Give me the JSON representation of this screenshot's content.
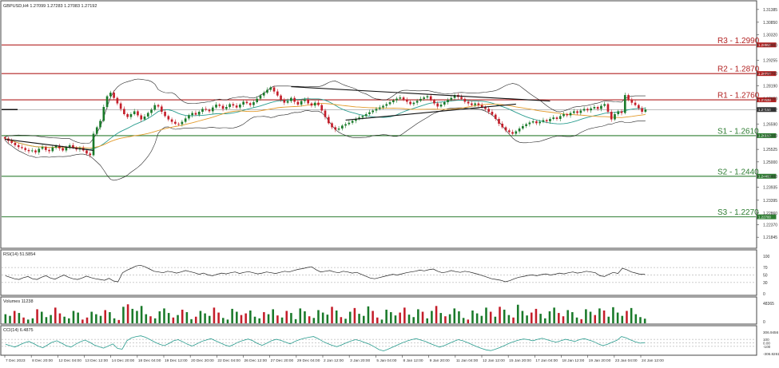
{
  "chart_data": {
    "type": "candlestick",
    "header": "GBPUSD,H4  1.27099 1.27283 1.27083 1.27192",
    "instrument": "GBPUSD,H4",
    "ohlc": {
      "open": 1.27099,
      "high": 1.27283,
      "low": 1.27083,
      "close": 1.27192
    },
    "price_ylim": [
      1.2145,
      1.3138
    ],
    "price_ticks": [
      "1.31385",
      "1.30850",
      "1.30320",
      "1.29900",
      "1.29255",
      "1.28700",
      "1.28190",
      "1.27650",
      "1.27192",
      "1.26590",
      "1.26100",
      "1.25525",
      "1.25000",
      "1.24400",
      "1.23935",
      "1.23395",
      "1.22860",
      "1.22370",
      "1.21845"
    ],
    "current_price": 1.27192,
    "current_label": "1.27192",
    "levels": [
      {
        "name": "R3",
        "value": 1.299,
        "label": "R3 - 1.2990",
        "axis_label": "1.29900",
        "color": "#b22222"
      },
      {
        "name": "R2",
        "value": 1.287,
        "label": "R2 - 1.2870",
        "axis_label": "1.28700",
        "color": "#b22222"
      },
      {
        "name": "R1",
        "value": 1.276,
        "label": "R1 - 1.2760",
        "axis_label": "1.27600",
        "color": "#b22222"
      },
      {
        "name": "S1",
        "value": 1.261,
        "label": "S1 - 1.2610",
        "axis_label": "1.26100",
        "color": "#2e7d32"
      },
      {
        "name": "S2",
        "value": 1.244,
        "label": "S2 - 1.2440",
        "axis_label": "1.24400",
        "color": "#2e7d32"
      },
      {
        "name": "S3",
        "value": 1.227,
        "label": "S3 - 1.2270",
        "axis_label": "1.22700",
        "color": "#2e7d32"
      }
    ],
    "trendlines": [
      {
        "from": [
          0,
          1.2595
        ],
        "to": [
          26,
          1.2548
        ]
      },
      {
        "from": [
          84,
          1.2815
        ],
        "to": [
          160,
          1.2755
        ]
      },
      {
        "from": [
          100,
          1.2675
        ],
        "to": [
          150,
          1.2742
        ]
      }
    ],
    "price_series": [
      1.2598,
      1.2588,
      1.258,
      1.257,
      1.2562,
      1.2558,
      1.255,
      1.2545,
      1.2548,
      1.254,
      1.2555,
      1.2562,
      1.255,
      1.2545,
      1.256,
      1.2568,
      1.2557,
      1.2548,
      1.2562,
      1.257,
      1.256,
      1.2552,
      1.2558,
      1.2548,
      1.2535,
      1.2528,
      1.2618,
      1.2645,
      1.2672,
      1.273,
      1.2775,
      1.279,
      1.2768,
      1.2745,
      1.2722,
      1.27,
      1.2688,
      1.27,
      1.2712,
      1.2695,
      1.2678,
      1.269,
      1.2705,
      1.2718,
      1.2738,
      1.2732,
      1.271,
      1.2692,
      1.2678,
      1.2668,
      1.266,
      1.2658,
      1.2668,
      1.2682,
      1.2696,
      1.2705,
      1.2698,
      1.271,
      1.2722,
      1.2718,
      1.2712,
      1.2728,
      1.274,
      1.2735,
      1.2722,
      1.273,
      1.2742,
      1.2736,
      1.2728,
      1.274,
      1.2752,
      1.2746,
      1.2738,
      1.275,
      1.2765,
      1.2778,
      1.279,
      1.2802,
      1.2812,
      1.2795,
      1.2778,
      1.276,
      1.2748,
      1.2755,
      1.2768,
      1.2752,
      1.274,
      1.2755,
      1.2762,
      1.2745,
      1.2736,
      1.2748,
      1.2738,
      1.2715,
      1.2688,
      1.2662,
      1.2645,
      1.2635,
      1.264,
      1.2652,
      1.2658,
      1.2664,
      1.2672,
      1.268,
      1.2686,
      1.2692,
      1.27,
      1.2708,
      1.2715,
      1.2722,
      1.2728,
      1.2735,
      1.2742,
      1.275,
      1.2758,
      1.2765,
      1.277,
      1.2762,
      1.2752,
      1.2742,
      1.2748,
      1.2756,
      1.2764,
      1.277,
      1.2775,
      1.2758,
      1.2745,
      1.2732,
      1.274,
      1.275,
      1.276,
      1.2768,
      1.278,
      1.2772,
      1.2764,
      1.2752,
      1.2745,
      1.2738,
      1.2745,
      1.2738,
      1.273,
      1.2722,
      1.271,
      1.2698,
      1.268,
      1.266,
      1.2645,
      1.2632,
      1.2625,
      1.2618,
      1.2628,
      1.264,
      1.265,
      1.2658,
      1.2665,
      1.267,
      1.2662,
      1.2668,
      1.2675,
      1.267,
      1.268,
      1.2686,
      1.268,
      1.2692,
      1.27,
      1.2695,
      1.2705,
      1.2712,
      1.2705,
      1.2715,
      1.2722,
      1.2716,
      1.2724,
      1.273,
      1.2722,
      1.2735,
      1.2742,
      1.271,
      1.2678,
      1.27,
      1.2712,
      1.2705,
      1.278,
      1.2762,
      1.2748,
      1.2738,
      1.2725,
      1.271,
      1.2719
    ],
    "rsi": {
      "label": "RSI(14) 51.5854",
      "value": 51.5854,
      "ylim": [
        0,
        100
      ],
      "levels": [
        70,
        50,
        30
      ],
      "ticks": [
        "100",
        "70",
        "50",
        "30",
        "0"
      ],
      "series": [
        48,
        44,
        40,
        38,
        43,
        46,
        40,
        38,
        44,
        48,
        42,
        39,
        45,
        50,
        44,
        40,
        38,
        42,
        47,
        43,
        40,
        38,
        36,
        41,
        34,
        32,
        56,
        63,
        68,
        74,
        76,
        72,
        66,
        60,
        58,
        56,
        60,
        58,
        55,
        58,
        62,
        59,
        56,
        52,
        55,
        50,
        48,
        52,
        55,
        53,
        56,
        58,
        54,
        57,
        59,
        56,
        53,
        55,
        58,
        56,
        54,
        57,
        60,
        58,
        62,
        65,
        67,
        70,
        72,
        64,
        58,
        60,
        62,
        58,
        56,
        60,
        58,
        55,
        57,
        52,
        47,
        42,
        40,
        43,
        46,
        49,
        52,
        50,
        53,
        56,
        58,
        60,
        63,
        61,
        64,
        66,
        60,
        56,
        58,
        62,
        59,
        57,
        60,
        58,
        55,
        52,
        48,
        44,
        40,
        38,
        36,
        32,
        35,
        40,
        44,
        46,
        49,
        50,
        48,
        51,
        53,
        50,
        52,
        55,
        53,
        56,
        58,
        55,
        57,
        60,
        58,
        56,
        48,
        46,
        52,
        57,
        54,
        68,
        64,
        58,
        55,
        52,
        52
      ]
    },
    "volumes": {
      "label": "Volumes 11238",
      "value": 11238,
      "ylim": [
        0,
        48365
      ],
      "ticks": [
        "48365",
        "0"
      ],
      "series": [
        22000,
        18000,
        30000,
        25000,
        14000,
        9000,
        12000,
        34000,
        28000,
        15000,
        20000,
        38000,
        24000,
        16000,
        12000,
        30000,
        26000,
        9000,
        14000,
        28000,
        22000,
        18000,
        32000,
        27000,
        12000,
        8000,
        40000,
        46000,
        35000,
        30000,
        42000,
        22000,
        17000,
        12000,
        29000,
        36000,
        25000,
        14000,
        20000,
        33000,
        27000,
        10000,
        16000,
        30000,
        24000,
        18000,
        38000,
        26000,
        13000,
        9000,
        35000,
        28000,
        20000,
        24000,
        31000,
        16000,
        12000,
        27000,
        22000,
        34000,
        19000,
        14000,
        30000,
        25000,
        10000,
        36000,
        29000,
        17000,
        13000,
        32000,
        26000,
        21000,
        40000,
        31000,
        15000,
        11000,
        28000,
        37000,
        23000,
        18000,
        41000,
        30000,
        14000,
        9000,
        33000,
        27000,
        19000,
        26000,
        38000,
        21000,
        15000,
        34000,
        28000,
        12000,
        30000,
        42000,
        25000,
        17000,
        22000,
        36000,
        29000,
        13000,
        9000,
        31000,
        24000,
        18000,
        38000,
        28000,
        16000,
        40000,
        33000,
        20000,
        14000,
        45000,
        30000,
        19000,
        26000,
        35000,
        23000,
        12000,
        29000,
        38000,
        25000,
        17000,
        32000,
        27000,
        14000,
        10000,
        34000,
        28000,
        20000,
        36000,
        31000,
        16000,
        39000,
        26000,
        18000,
        30000,
        37000,
        22000,
        15000,
        11238
      ]
    },
    "cci": {
      "label": "CCI(14) 6.4875",
      "value": 6.4875,
      "ylim": [
        -306.8261,
        306.9456
      ],
      "levels": [
        100,
        0,
        -100
      ],
      "ticks": [
        "306.9456",
        "100",
        "0.00",
        "-100",
        "-306.8261"
      ],
      "series": [
        -40,
        -80,
        -120,
        -60,
        0,
        40,
        -20,
        -90,
        -140,
        -60,
        20,
        60,
        -10,
        -80,
        -120,
        -40,
        30,
        80,
        20,
        -60,
        -110,
        -150,
        -90,
        -30,
        -160,
        -180,
        60,
        140,
        180,
        200,
        160,
        90,
        20,
        -40,
        -80,
        -20,
        60,
        90,
        30,
        -40,
        -90,
        -30,
        40,
        80,
        120,
        60,
        0,
        -60,
        -100,
        -40,
        30,
        70,
        110,
        60,
        -20,
        -70,
        -10,
        60,
        100,
        70,
        20,
        -30,
        40,
        90,
        130,
        160,
        180,
        120,
        40,
        -20,
        -70,
        -110,
        -60,
        0,
        50,
        90,
        60,
        10,
        -40,
        -110,
        -190,
        -230,
        -180,
        -120,
        -60,
        0,
        50,
        90,
        120,
        80,
        40,
        -20,
        -70,
        -120,
        -80,
        -20,
        40,
        90,
        60,
        10,
        -50,
        -110,
        -160,
        -200,
        -220,
        -180,
        -130,
        -70,
        -10,
        40,
        80,
        110,
        90,
        60,
        100,
        130,
        90,
        50,
        20,
        60,
        100,
        70,
        40,
        90,
        120,
        80,
        40,
        -30,
        -80,
        -40,
        20,
        70,
        180,
        140,
        80,
        30,
        -10,
        6
      ]
    },
    "x_ticks": [
      "7 Dec 2023",
      "8 Dec 20:00",
      "12 Dec 04:00",
      "13 Dec 12:00",
      "14 Dec 20:00",
      "18 Dec 04:00",
      "19 Dec 12:00",
      "20 Dec 20:00",
      "22 Dec 04:00",
      "26 Dec 12:00",
      "27 Dec 20:00",
      "29 Dec 04:00",
      "2 Jan 12:00",
      "3 Jan 20:00",
      "5 Jan 04:00",
      "8 Jan 12:00",
      "9 Jan 20:00",
      "11 Jan 04:00",
      "12 Jan 12:00",
      "15 Jan 20:00",
      "17 Jan 04:00",
      "18 Jan 12:00",
      "19 Jan 20:00",
      "23 Jan 04:00",
      "24 Jan 12:00"
    ],
    "colors": {
      "up": "#1a7a2a",
      "down": "#c41e2a",
      "bollinger": "#222222",
      "ma_fast": "#2a9d8f",
      "ma_slow": "#e39b2b",
      "grid_border": "#333333"
    }
  }
}
